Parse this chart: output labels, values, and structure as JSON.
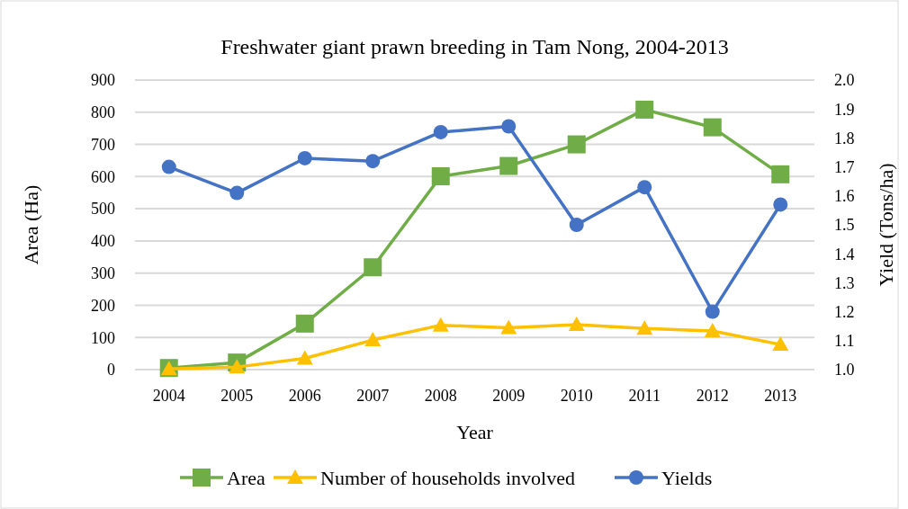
{
  "chart_data": {
    "type": "line",
    "title": "Freshwater giant prawn breeding in Tam Nong, 2004-2013",
    "xlabel": "Year",
    "ylabel": "Area (Ha)",
    "y2label": "Yield (Tons/ha)",
    "categories": [
      "2004",
      "2005",
      "2006",
      "2007",
      "2008",
      "2009",
      "2010",
      "2011",
      "2012",
      "2013"
    ],
    "series": [
      {
        "name": "Area",
        "color": "#70ad47",
        "marker": "square",
        "values": [
          5,
          22,
          143,
          318,
          601,
          633,
          700,
          808,
          753,
          607
        ]
      },
      {
        "name": "Number of households involved",
        "color": "#ffc000",
        "marker": "triangle",
        "values": [
          2,
          8,
          35,
          92,
          138,
          130,
          140,
          128,
          120,
          78
        ]
      },
      {
        "name": "Yields",
        "color": "#4472c4",
        "marker": "circle",
        "axis": "y2",
        "values": [
          1.7,
          1.61,
          1.73,
          1.72,
          1.82,
          1.84,
          1.5,
          1.63,
          1.2,
          1.57
        ]
      }
    ],
    "ylim": [
      0,
      900
    ],
    "yticks": [
      0,
      100,
      200,
      300,
      400,
      500,
      600,
      700,
      800,
      900
    ],
    "y2lim": [
      1.0,
      2.0
    ],
    "y2ticks": [
      {
        "value": 1.0,
        "label": "1.0"
      },
      {
        "value": 1.1,
        "label": "1.1"
      },
      {
        "value": 1.2,
        "label": "1.2"
      },
      {
        "value": 1.3,
        "label": "1.3"
      },
      {
        "value": 1.4,
        "label": "1.4"
      },
      {
        "value": 1.5,
        "label": "1.5"
      },
      {
        "value": 1.6,
        "label": "1.6"
      },
      {
        "value": 1.7,
        "label": "1.7"
      },
      {
        "value": 1.8,
        "label": "1.8"
      },
      {
        "value": 1.9,
        "label": "1.9"
      },
      {
        "value": 2.0,
        "label": "2.0"
      }
    ],
    "grid": "y",
    "legend": "bottom",
    "line_style": "solid"
  }
}
